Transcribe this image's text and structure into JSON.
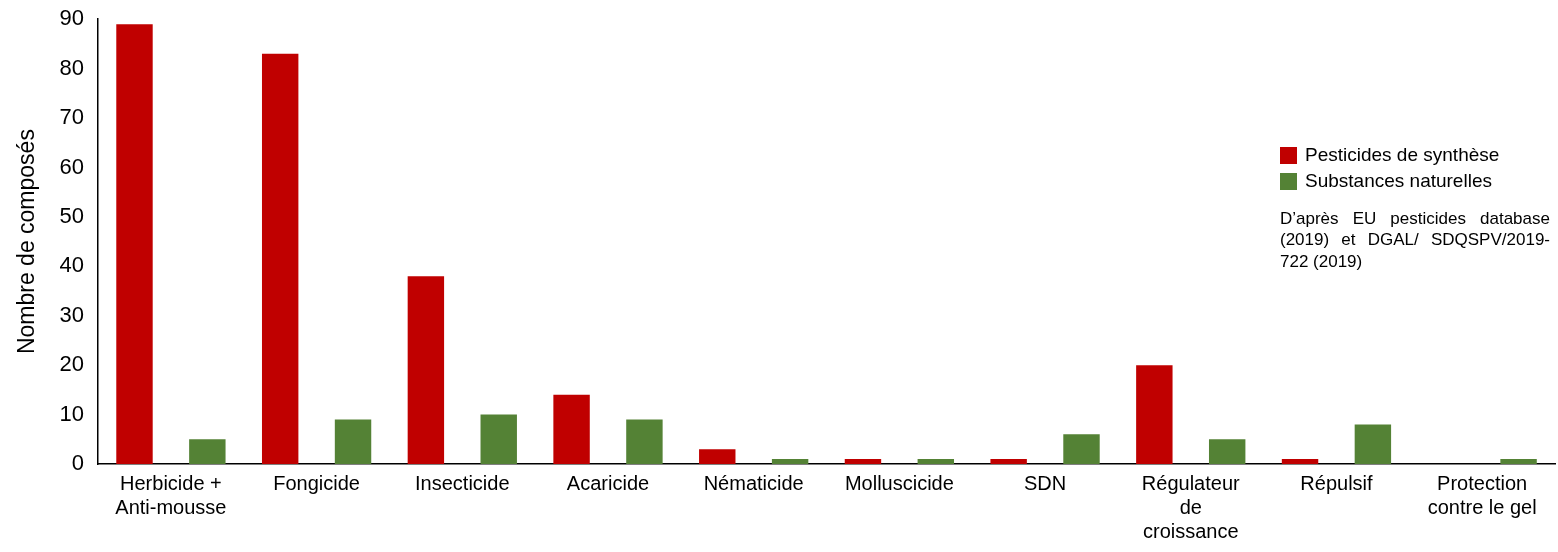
{
  "chart_data": {
    "type": "bar",
    "ylabel": "Nombre de composés",
    "categories": [
      "Herbicide + Anti-mousse",
      "Fongicide",
      "Insecticide",
      "Acaricide",
      "Nématicide",
      "Molluscicide",
      "SDN",
      "Régulateur de croissance",
      "Répulsif",
      "Protection contre le gel"
    ],
    "series": [
      {
        "name": "Pesticides de synthèse",
        "color": "#c00000",
        "values": [
          89,
          83,
          38,
          14,
          3,
          1,
          1,
          20,
          1,
          0
        ]
      },
      {
        "name": "Substances naturelles",
        "color": "#548235",
        "values": [
          5,
          9,
          10,
          9,
          1,
          1,
          6,
          5,
          8,
          1
        ]
      }
    ],
    "ylim": [
      0,
      90
    ],
    "yticks": [
      0,
      10,
      20,
      30,
      40,
      50,
      60,
      70,
      80,
      90
    ],
    "grid": false,
    "legend": "right",
    "annotations": [
      "D’après EU pesticides database (2019) et DGAL/ SDQSPV/2019-722 (2019)"
    ]
  }
}
